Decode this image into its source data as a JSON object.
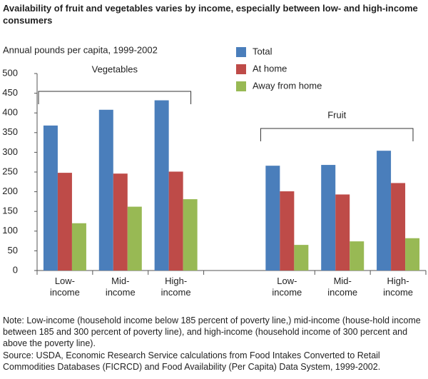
{
  "chart_data": {
    "type": "bar",
    "title": "Availability of fruit and vegetables varies by income, especially between low- and high-income consumers",
    "y_label": "Annual pounds per capita, 1999-2002",
    "categories": [
      "Low-\nincome",
      "Mid-\nincome",
      "High-\nincome",
      null,
      "Low-\nincome",
      "Mid-\nincome",
      "High-\nincome"
    ],
    "series": [
      {
        "name": "Total",
        "color": "#4a7ebb",
        "values": [
          368,
          408,
          432,
          null,
          266,
          268,
          304
        ]
      },
      {
        "name": "At home",
        "color": "#be4b48",
        "values": [
          248,
          246,
          251,
          null,
          201,
          193,
          222
        ]
      },
      {
        "name": "Away from home",
        "color": "#98b954",
        "values": [
          120,
          162,
          181,
          null,
          65,
          74,
          82
        ]
      }
    ],
    "annotations": [
      "Vegetables",
      "Fruit"
    ],
    "ylim": [
      0,
      500
    ],
    "yticks": [
      0,
      50,
      100,
      150,
      200,
      250,
      300,
      350,
      400,
      450,
      500
    ],
    "grid": false,
    "notes": "Note:  Low-income (household income  below 185 percent of poverty line,) mid-income (house-hold income between 185 and 300 percent of poverty line), and high-income  (household income of 300 percent and above the  poverty line).",
    "source": "Source:  USDA, Economic Research Service calculations from Food Intakes Converted to Retail Commodities Databases (FICRCD) and Food Availability (Per Capita) Data System, 1999-2002."
  }
}
